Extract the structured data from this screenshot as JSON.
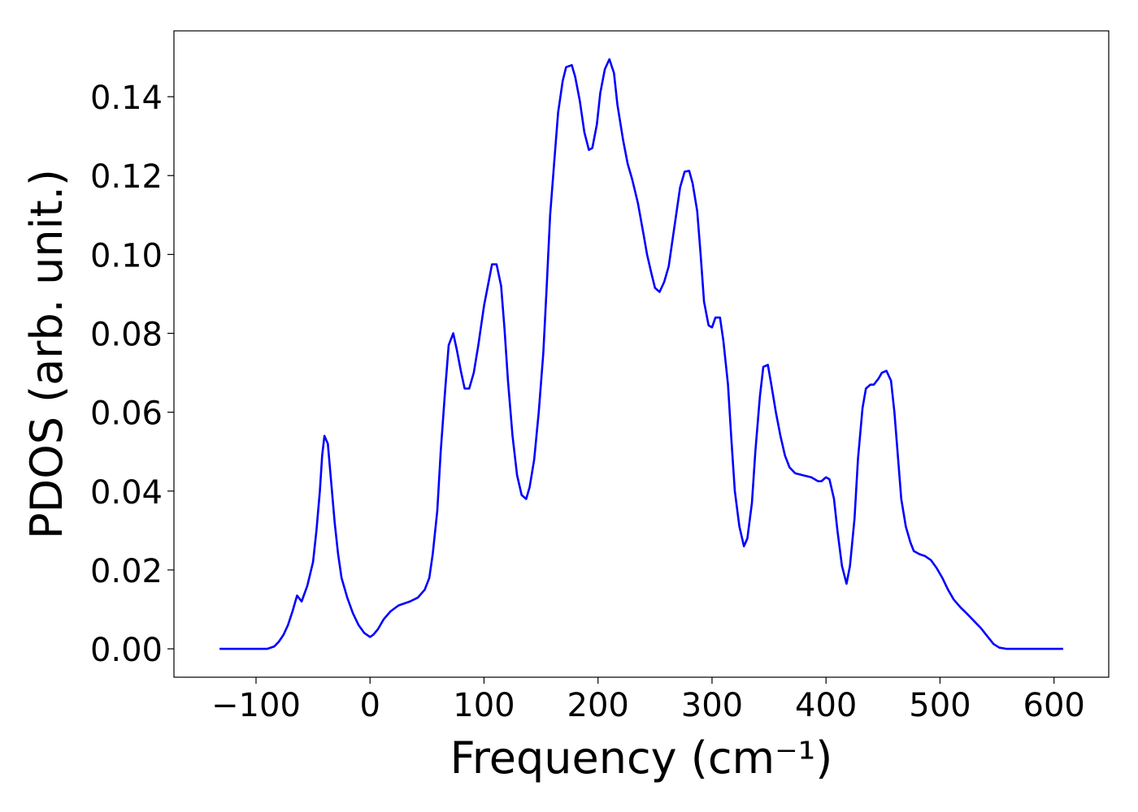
{
  "chart_data": {
    "type": "line",
    "x_label": "Frequency (cm⁻¹)",
    "y_label": "PDOS (arb. unit.)",
    "xlim": [
      -172,
      648
    ],
    "ylim": [
      -0.0072,
      0.1567
    ],
    "xticks": [
      {
        "value": -100,
        "label": "−100"
      },
      0,
      100,
      200,
      300,
      400,
      500,
      600
    ],
    "yticks": [
      {
        "value": 0,
        "label": "0.00"
      },
      {
        "value": 0.02,
        "label": "0.02"
      },
      {
        "value": 0.04,
        "label": "0.04"
      },
      {
        "value": 0.06,
        "label": "0.06"
      },
      {
        "value": 0.08,
        "label": "0.08"
      },
      {
        "value": 0.1,
        "label": "0.10"
      },
      {
        "value": 0.12,
        "label": "0.12"
      },
      {
        "value": 0.14,
        "label": "0.14"
      }
    ],
    "grid": false,
    "series": [
      {
        "color": "#0000ff",
        "x": [
          -132,
          -90,
          -84,
          -80,
          -76,
          -72,
          -68,
          -64,
          -60,
          -55,
          -50,
          -47,
          -44,
          -42,
          -40,
          -37,
          -34,
          -31,
          -28,
          -25,
          -20,
          -15,
          -10,
          -5,
          0,
          3,
          7,
          12,
          18,
          25,
          35,
          42,
          48,
          52,
          55,
          59,
          62,
          66,
          69,
          73,
          76,
          80,
          83,
          87,
          91,
          95,
          100,
          104,
          107,
          111,
          115,
          118,
          121,
          125,
          129,
          133,
          137,
          140,
          144,
          148,
          152,
          155,
          158,
          162,
          165,
          169,
          172,
          177,
          180,
          184,
          188,
          192,
          195,
          199,
          202,
          206,
          210,
          214,
          217,
          222,
          226,
          230,
          235,
          240,
          243,
          247,
          250,
          254,
          258,
          262,
          265,
          269,
          272,
          276,
          280,
          283,
          287,
          290,
          293,
          297,
          300,
          303,
          307,
          310,
          314,
          317,
          320,
          324,
          328,
          331,
          335,
          338,
          342,
          345,
          349,
          352,
          356,
          360,
          364,
          368,
          373,
          380,
          387,
          393,
          396,
          400,
          403,
          407,
          410,
          414,
          418,
          421,
          425,
          428,
          432,
          435,
          439,
          442,
          446,
          449,
          453,
          457,
          460,
          463,
          466,
          470,
          474,
          477,
          482,
          487,
          492,
          497,
          502,
          507,
          512,
          518,
          524,
          530,
          536,
          542,
          547,
          552,
          558,
          608
        ],
        "values": [
          0,
          0,
          0.0006,
          0.0018,
          0.0035,
          0.006,
          0.0095,
          0.0135,
          0.012,
          0.016,
          0.022,
          0.03,
          0.04,
          0.049,
          0.054,
          0.052,
          0.042,
          0.032,
          0.024,
          0.018,
          0.013,
          0.009,
          0.006,
          0.004,
          0.003,
          0.0036,
          0.005,
          0.0075,
          0.0095,
          0.011,
          0.012,
          0.013,
          0.015,
          0.018,
          0.024,
          0.035,
          0.05,
          0.066,
          0.077,
          0.08,
          0.076,
          0.07,
          0.066,
          0.066,
          0.07,
          0.077,
          0.087,
          0.093,
          0.0975,
          0.0975,
          0.092,
          0.081,
          0.068,
          0.054,
          0.044,
          0.039,
          0.038,
          0.041,
          0.048,
          0.06,
          0.075,
          0.092,
          0.11,
          0.125,
          0.136,
          0.144,
          0.1475,
          0.148,
          0.145,
          0.139,
          0.131,
          0.1265,
          0.127,
          0.133,
          0.141,
          0.147,
          0.1495,
          0.146,
          0.138,
          0.129,
          0.123,
          0.119,
          0.113,
          0.105,
          0.1,
          0.095,
          0.0915,
          0.0905,
          0.093,
          0.097,
          0.103,
          0.111,
          0.117,
          0.121,
          0.1212,
          0.118,
          0.111,
          0.1,
          0.088,
          0.082,
          0.0815,
          0.084,
          0.084,
          0.078,
          0.067,
          0.053,
          0.04,
          0.031,
          0.026,
          0.028,
          0.037,
          0.05,
          0.064,
          0.0715,
          0.072,
          0.067,
          0.06,
          0.054,
          0.049,
          0.046,
          0.0445,
          0.044,
          0.0435,
          0.0425,
          0.0425,
          0.0435,
          0.043,
          0.038,
          0.03,
          0.021,
          0.0165,
          0.021,
          0.033,
          0.048,
          0.061,
          0.066,
          0.067,
          0.067,
          0.0685,
          0.07,
          0.0705,
          0.068,
          0.06,
          0.049,
          0.038,
          0.031,
          0.027,
          0.0248,
          0.024,
          0.0235,
          0.0225,
          0.0205,
          0.018,
          0.015,
          0.0125,
          0.0105,
          0.0088,
          0.007,
          0.0052,
          0.003,
          0.0012,
          0.0003,
          0,
          0
        ]
      }
    ]
  }
}
